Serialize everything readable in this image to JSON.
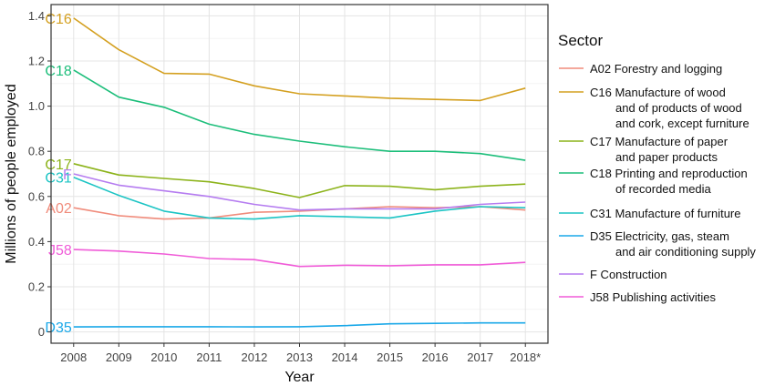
{
  "chart_data": {
    "type": "line",
    "title": "",
    "xlabel": "Year",
    "ylabel": "Millions of people employed",
    "categories": [
      "2008",
      "2009",
      "2010",
      "2011",
      "2012",
      "2013",
      "2014",
      "2015",
      "2016",
      "2017",
      "2018*"
    ],
    "ylim": [
      -0.05,
      1.45
    ],
    "yticks": [
      "0",
      "0.2",
      "0.4",
      "0.6",
      "0.8",
      "1.0",
      "1.2",
      "1.4"
    ],
    "grid": true,
    "legend": {
      "title": "Sector",
      "position": "right"
    },
    "series": [
      {
        "code": "A02",
        "name": [
          "A02 Forestry and logging"
        ],
        "color": "#F08C7C",
        "values": [
          0.55,
          0.515,
          0.5,
          0.505,
          0.53,
          0.535,
          0.545,
          0.555,
          0.55,
          0.555,
          0.54
        ]
      },
      {
        "code": "C16",
        "name": [
          "C16 Manufacture of wood",
          "and of products of wood",
          "and cork, except furniture"
        ],
        "color": "#D4A020",
        "values": [
          1.39,
          1.25,
          1.145,
          1.142,
          1.09,
          1.055,
          1.045,
          1.035,
          1.03,
          1.025,
          1.08
        ]
      },
      {
        "code": "C17",
        "name": [
          "C17 Manufacture of paper",
          "and paper products"
        ],
        "color": "#8CB31A",
        "values": [
          0.745,
          0.695,
          0.68,
          0.665,
          0.635,
          0.595,
          0.648,
          0.645,
          0.63,
          0.645,
          0.655
        ]
      },
      {
        "code": "C18",
        "name": [
          "C18 Printing and reproduction",
          "of recorded media"
        ],
        "color": "#1CBE7A",
        "values": [
          1.16,
          1.04,
          0.995,
          0.92,
          0.875,
          0.845,
          0.82,
          0.8,
          0.8,
          0.79,
          0.76
        ]
      },
      {
        "code": "C31",
        "name": [
          "C31 Manufacture of furniture"
        ],
        "color": "#1CC4C4",
        "values": [
          0.685,
          0.605,
          0.535,
          0.505,
          0.5,
          0.515,
          0.51,
          0.505,
          0.535,
          0.555,
          0.55
        ]
      },
      {
        "code": "D35",
        "name": [
          "D35 Electricity, gas, steam",
          "and air conditioning supply"
        ],
        "color": "#1AA8E8",
        "values": [
          0.022,
          0.023,
          0.023,
          0.023,
          0.022,
          0.023,
          0.028,
          0.036,
          0.038,
          0.04,
          0.04
        ]
      },
      {
        "code": "F",
        "name": [
          "F    Construction"
        ],
        "color": "#B57CF0",
        "values": [
          0.7,
          0.65,
          0.625,
          0.6,
          0.565,
          0.54,
          0.545,
          0.545,
          0.545,
          0.565,
          0.575
        ]
      },
      {
        "code": "J58",
        "name": [
          "J58 Publishing activities"
        ],
        "color": "#F05CD8",
        "values": [
          0.365,
          0.358,
          0.345,
          0.325,
          0.32,
          0.29,
          0.295,
          0.293,
          0.297,
          0.297,
          0.308
        ]
      }
    ]
  }
}
